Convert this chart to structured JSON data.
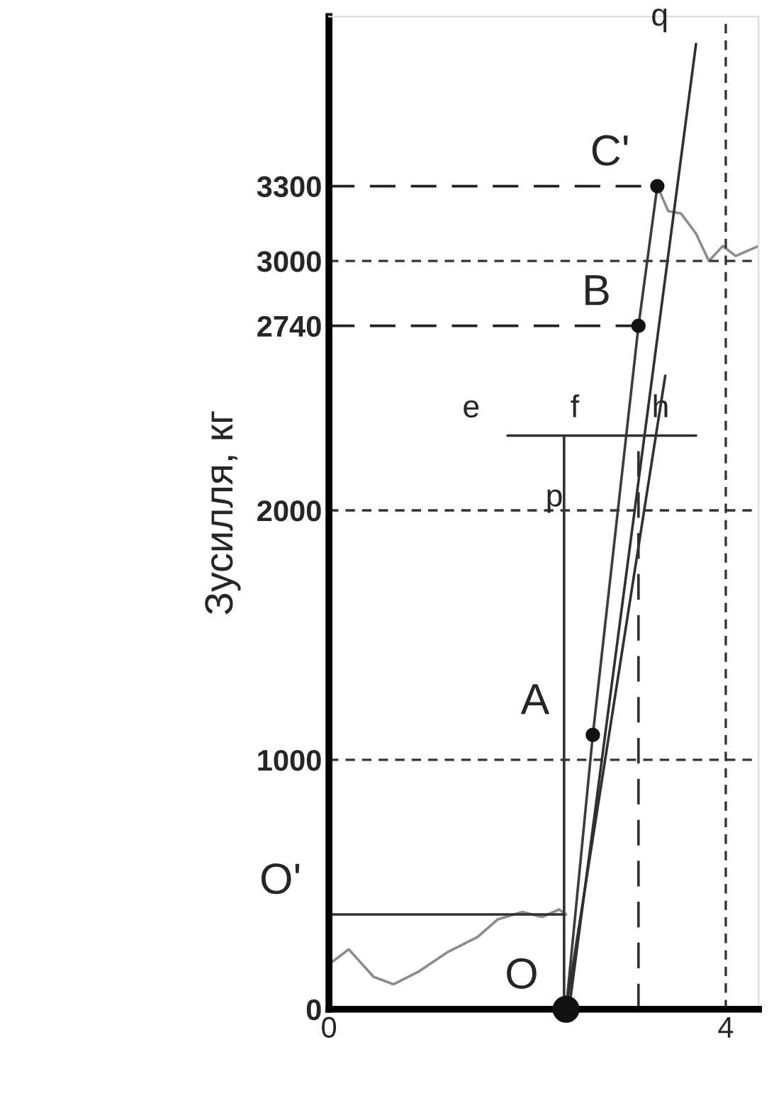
{
  "chart_data": {
    "type": "line",
    "ylabel": "Зусилля, кг",
    "xlim": [
      0,
      4.33
    ],
    "ylim": [
      0,
      3980
    ],
    "xticks": [
      0,
      4
    ],
    "yticks": [
      0,
      1000,
      2000,
      2740,
      3000,
      3300
    ],
    "series": [
      {
        "type": "line",
        "color": "#8c8c8c",
        "line_style": "solid",
        "marker": "none",
        "x": [
          0,
          0.2,
          0.45,
          0.65,
          0.9,
          1.2,
          1.5,
          1.7,
          1.95,
          2.15,
          2.32,
          2.39
        ],
        "values": [
          180,
          240,
          130,
          100,
          150,
          230,
          290,
          360,
          390,
          370,
          400,
          380
        ]
      },
      {
        "type": "line",
        "color": "#8c8c8c",
        "line_style": "solid",
        "marker": "none",
        "x": [
          3.31,
          3.42,
          3.55,
          3.7,
          3.83,
          3.97,
          4.1,
          4.33
        ],
        "values": [
          3300,
          3200,
          3190,
          3110,
          3000,
          3060,
          3020,
          3060
        ]
      },
      {
        "type": "line",
        "color": "#3c3c3c",
        "line_style": "solid",
        "marker": "none",
        "x": [
          2.39,
          2.66,
          3.12,
          3.31
        ],
        "values": [
          0,
          1100,
          2740,
          3300
        ]
      },
      {
        "type": "line",
        "color": "#303030",
        "line_style": "solid",
        "marker": "none",
        "x": [
          2.42,
          3.7
        ],
        "values": [
          0,
          3870
        ]
      },
      {
        "type": "line",
        "color": "#303030",
        "line_style": "solid",
        "marker": "none",
        "x": [
          2.39,
          3.39
        ],
        "values": [
          0,
          2540
        ]
      },
      {
        "type": "line",
        "color": "#303030",
        "line_style": "solid",
        "marker": "none",
        "x": [
          2.37,
          2.37
        ],
        "values": [
          0,
          2300
        ]
      },
      {
        "type": "line",
        "color": "#303030",
        "line_style": "dashed",
        "marker": "none",
        "x": [
          3.12,
          3.12
        ],
        "values": [
          0,
          2300
        ]
      },
      {
        "type": "line",
        "color": "#303030",
        "line_style": "solid",
        "marker": "none",
        "x": [
          0,
          2.37
        ],
        "values": [
          380,
          380
        ]
      },
      {
        "type": "line",
        "color": "#303030",
        "line_style": "solid",
        "marker": "none",
        "x": [
          1.8,
          3.7
        ],
        "values": [
          2300,
          2300
        ]
      },
      {
        "type": "line",
        "color": "#222222",
        "line_style": "dashed",
        "marker": "none",
        "x": [
          0,
          3.31
        ],
        "values": [
          3300,
          3300
        ]
      },
      {
        "type": "line",
        "color": "#222222",
        "line_style": "dashed",
        "marker": "none",
        "x": [
          0,
          3.12
        ],
        "values": [
          2740,
          2740
        ]
      },
      {
        "type": "scatter",
        "color": "#111111",
        "marker": "circle",
        "x": [
          2.66,
          3.12,
          3.31
        ],
        "values": [
          1100,
          2740,
          3300
        ]
      },
      {
        "type": "scatter",
        "color": "#111111",
        "marker": "circle",
        "x": [
          2.39
        ],
        "values": [
          0
        ]
      }
    ],
    "ref_lines": [
      {
        "axis": "y",
        "value": 1000,
        "color": "#333333",
        "line_style": "dotted"
      },
      {
        "axis": "y",
        "value": 2000,
        "color": "#333333",
        "line_style": "dotted"
      },
      {
        "axis": "y",
        "value": 3000,
        "color": "#333333",
        "line_style": "dotted"
      },
      {
        "axis": "x",
        "value": 4,
        "color": "#333333",
        "line_style": "dotted"
      }
    ],
    "annotations": [
      {
        "text": "O'",
        "x": 0.0,
        "y": 380
      },
      {
        "text": "O",
        "x": 2.39,
        "y": 0
      },
      {
        "text": "A",
        "x": 2.66,
        "y": 1100
      },
      {
        "text": "B",
        "x": 3.12,
        "y": 2740
      },
      {
        "text": "C'",
        "x": 3.31,
        "y": 3300
      },
      {
        "text": "e",
        "x": 1.8,
        "y": 2300
      },
      {
        "text": "f",
        "x": 2.8,
        "y": 2300
      },
      {
        "text": "h",
        "x": 3.55,
        "y": 2300
      },
      "p",
      {
        "text": "q",
        "x": 3.7,
        "y": 3870
      }
    ],
    "grid": false,
    "legend": false
  }
}
